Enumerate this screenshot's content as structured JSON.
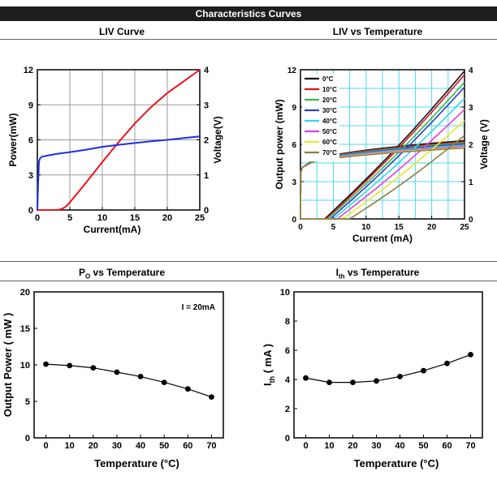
{
  "header": {
    "title": "Characteristics Curves"
  },
  "panels": {
    "liv": {
      "title": "LIV Curve"
    },
    "livt": {
      "title": "LIV vs Temperature"
    },
    "po": {
      "title_main": "P",
      "title_sub": "O",
      "title_rest": " vs Temperature"
    },
    "ith": {
      "title_main": "I",
      "title_sub": "th",
      "title_rest": " vs Temperature"
    }
  },
  "chart_data": [
    {
      "id": "liv",
      "type": "line",
      "xlabel": "Current(mA)",
      "ylabel": "Power(mW)",
      "y2label": "Voltage(V)",
      "xlim": [
        0,
        25
      ],
      "ylim": [
        0,
        12
      ],
      "y2lim": [
        0,
        4
      ],
      "xticks": [
        0,
        5,
        10,
        15,
        20,
        25
      ],
      "yticks": [
        0,
        3,
        6,
        9,
        12
      ],
      "y2ticks": [
        0,
        1,
        2,
        3,
        4
      ],
      "grid": true,
      "series": [
        {
          "color": "#e8141e",
          "axis": "left",
          "x": [
            0,
            3.2,
            3.8,
            4.4,
            5,
            7,
            10,
            12.5,
            15,
            17.5,
            20,
            22.5,
            25
          ],
          "y": [
            0,
            0,
            0.1,
            0.3,
            0.65,
            2.0,
            4.1,
            5.8,
            7.4,
            8.8,
            10.0,
            11.0,
            12.0
          ]
        },
        {
          "color": "#1e2ee8",
          "axis": "right",
          "x": [
            0,
            0.12,
            0.25,
            0.4,
            0.7,
            1.5,
            3,
            5,
            7.5,
            10,
            12.5,
            15,
            17.5,
            20,
            22.5,
            25
          ],
          "y": [
            0,
            0.8,
            1.38,
            1.47,
            1.52,
            1.55,
            1.6,
            1.65,
            1.72,
            1.8,
            1.86,
            1.91,
            1.96,
            2.0,
            2.05,
            2.1
          ]
        }
      ]
    },
    {
      "id": "livt",
      "type": "line",
      "xlabel": "Current (mA)",
      "ylabel": "Output power (mW)",
      "y2label": "Voltage (V)",
      "xlim": [
        0,
        25
      ],
      "ylim": [
        0,
        12
      ],
      "y2lim": [
        0,
        4
      ],
      "xticks": [
        0,
        5,
        10,
        15,
        20,
        25
      ],
      "yticks": [
        0,
        3,
        6,
        9,
        12
      ],
      "y2ticks": [
        0,
        1,
        2,
        3,
        4
      ],
      "grid": true,
      "legend_position": "top-left",
      "series": [
        {
          "name": "0°C",
          "color": "#111111",
          "threshold": 3.7,
          "pmax": 11.9,
          "v25": 2.1
        },
        {
          "name": "10°C",
          "color": "#d9141e",
          "threshold": 3.9,
          "pmax": 11.6,
          "v25": 2.07
        },
        {
          "name": "20°C",
          "color": "#3cb84a",
          "threshold": 4.1,
          "pmax": 11.0,
          "v25": 2.04
        },
        {
          "name": "30°C",
          "color": "#2e3cc8",
          "threshold": 4.5,
          "pmax": 10.6,
          "v25": 2.01
        },
        {
          "name": "40°C",
          "color": "#33d6ee",
          "threshold": 5.0,
          "pmax": 9.7,
          "v25": 1.98
        },
        {
          "name": "50°C",
          "color": "#e040d8",
          "threshold": 5.6,
          "pmax": 8.8,
          "v25": 1.95
        },
        {
          "name": "60°C",
          "color": "#e8e830",
          "threshold": 6.4,
          "pmax": 7.9,
          "v25": 1.92
        },
        {
          "name": "70°C",
          "color": "#8a8040",
          "threshold": 7.5,
          "pmax": 6.7,
          "v25": 1.9
        }
      ]
    },
    {
      "id": "po",
      "type": "line",
      "xlabel": "Temperature (°C)",
      "ylabel": "Output Power ( mW )",
      "annotation": "I = 20mA",
      "xlim": [
        -5,
        75
      ],
      "ylim": [
        0,
        20
      ],
      "xticks": [
        0,
        10,
        20,
        30,
        40,
        50,
        60,
        70
      ],
      "yticks": [
        0,
        5,
        10,
        15,
        20
      ],
      "grid": false,
      "series": [
        {
          "x": [
            0,
            10,
            20,
            30,
            40,
            50,
            60,
            70
          ],
          "y": [
            10.1,
            9.9,
            9.6,
            9.0,
            8.4,
            7.6,
            6.7,
            5.6
          ]
        }
      ]
    },
    {
      "id": "ith",
      "type": "line",
      "xlabel": "Temperature (°C)",
      "ylabel": "Ith ( mA )",
      "xlim": [
        -5,
        75
      ],
      "ylim": [
        0,
        10
      ],
      "xticks": [
        0,
        10,
        20,
        30,
        40,
        50,
        60,
        70
      ],
      "yticks": [
        0,
        2,
        4,
        6,
        8,
        10
      ],
      "grid": false,
      "series": [
        {
          "x": [
            0,
            10,
            20,
            30,
            40,
            50,
            60,
            70
          ],
          "y": [
            4.1,
            3.8,
            3.8,
            3.9,
            4.2,
            4.6,
            5.1,
            5.7
          ]
        }
      ]
    }
  ]
}
